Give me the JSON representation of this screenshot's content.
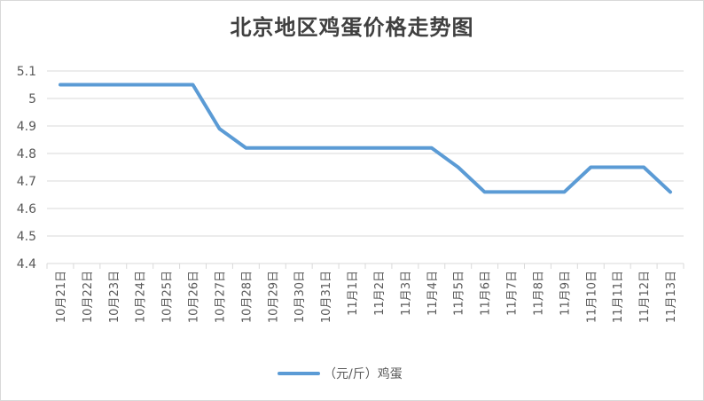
{
  "chart_data": {
    "type": "line",
    "title": "北京地区鸡蛋价格走势图",
    "categories": [
      "10月21日",
      "10月22日",
      "10月23日",
      "10月24日",
      "10月25日",
      "10月26日",
      "10月27日",
      "10月28日",
      "10月29日",
      "10月30日",
      "10月31日",
      "11月1日",
      "11月2日",
      "11月3日",
      "11月4日",
      "11月5日",
      "11月6日",
      "11月7日",
      "11月8日",
      "11月9日",
      "11月10日",
      "11月11日",
      "11月12日",
      "11月13日"
    ],
    "series": [
      {
        "name": "（元/斤）鸡蛋",
        "values": [
          5.05,
          5.05,
          5.05,
          5.05,
          5.05,
          5.05,
          4.89,
          4.82,
          4.82,
          4.82,
          4.82,
          4.82,
          4.82,
          4.82,
          4.82,
          4.75,
          4.66,
          4.66,
          4.66,
          4.66,
          4.75,
          4.75,
          4.75,
          4.66
        ]
      }
    ],
    "ylim": [
      4.4,
      5.1
    ],
    "yticks": [
      "4.4",
      "4.5",
      "4.6",
      "4.7",
      "4.8",
      "4.9",
      "5",
      "5.1"
    ],
    "ytick_values": [
      4.4,
      4.5,
      4.6,
      4.7,
      4.8,
      4.9,
      5.0,
      5.1
    ],
    "grid": true,
    "legend_position": "bottom",
    "line_color": "#5b9bd5",
    "grid_color": "#d9d9d9"
  }
}
